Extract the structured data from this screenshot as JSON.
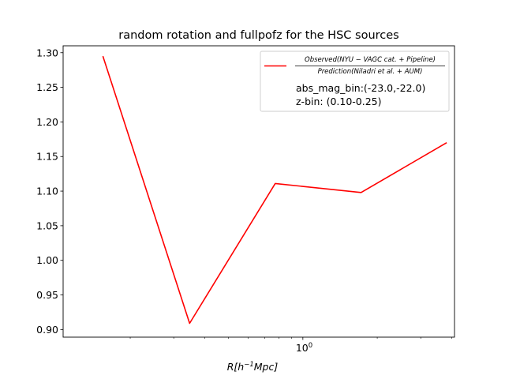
{
  "chart_data": {
    "type": "line",
    "title": "random rotation and fullpofz for the HSC sources",
    "xlabel": {
      "base": "R[h",
      "sup": "−1",
      "tail": "Mpc]"
    },
    "ylabel": "",
    "x_scale": "log",
    "xlim": [
      0.107,
      4.11
    ],
    "ylim": [
      0.889,
      1.31
    ],
    "grid": false,
    "legend_position": "upper right",
    "y_ticks": [
      0.9,
      0.95,
      1.0,
      1.05,
      1.1,
      1.15,
      1.2,
      1.25,
      1.3
    ],
    "y_tick_labels": [
      "0.90",
      "0.95",
      "1.00",
      "1.05",
      "1.10",
      "1.15",
      "1.20",
      "1.25",
      "1.30"
    ],
    "x_major_ticks": [
      1
    ],
    "x_major_labels": [
      {
        "base": "10",
        "sup": "0"
      }
    ],
    "x_minor_ticks": [
      0.2,
      0.3,
      0.4,
      0.5,
      0.6,
      0.7,
      0.8,
      0.9,
      2,
      3,
      4
    ],
    "series": [
      {
        "name": {
          "numerator": "Observed(NYU − VAGC cat. + Pipeline)",
          "denominator": "Prediction(Niladri et al. + AUM)"
        },
        "color": "#ff0000",
        "x": [
          0.155,
          0.348,
          0.773,
          1.72,
          3.82
        ],
        "y": [
          1.295,
          0.909,
          1.111,
          1.098,
          1.17
        ]
      }
    ],
    "annotations": [
      "abs_mag_bin:(-23.0,-22.0)",
      "z-bin: (0.10-0.25)"
    ]
  }
}
